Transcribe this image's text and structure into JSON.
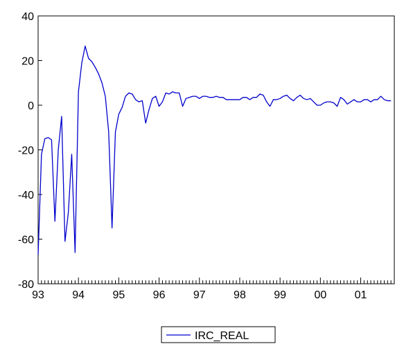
{
  "chart_data": {
    "type": "line",
    "title": "",
    "xlabel": "",
    "ylabel": "",
    "ylim": [
      -80,
      40
    ],
    "yticks": [
      40,
      20,
      0,
      -20,
      -40,
      -60,
      -80
    ],
    "xlim": [
      1993.0,
      2001.833
    ],
    "xticks": [
      {
        "value": 1993,
        "label": "93"
      },
      {
        "value": 1994,
        "label": "94"
      },
      {
        "value": 1995,
        "label": "95"
      },
      {
        "value": 1996,
        "label": "96"
      },
      {
        "value": 1997,
        "label": "97"
      },
      {
        "value": 1998,
        "label": "98"
      },
      {
        "value": 1999,
        "label": "99"
      },
      {
        "value": 2000,
        "label": "00"
      },
      {
        "value": 2001,
        "label": "01"
      }
    ],
    "frequency": "monthly",
    "start": "1993-01",
    "legend_position": "bottom-center",
    "grid": false,
    "series": [
      {
        "name": "IRC_REAL",
        "color": "#0000cc",
        "values": [
          -67,
          -22,
          -15,
          -14.5,
          -15.5,
          -52,
          -20,
          -5,
          -61,
          -48,
          -22,
          -66,
          6,
          19,
          26.5,
          21,
          19.5,
          17,
          14,
          10,
          4,
          -12,
          -55,
          -12,
          -4,
          -1,
          4,
          5.5,
          5,
          2.5,
          1.5,
          2,
          -8,
          -2,
          3,
          4,
          -0.5,
          1.5,
          5.5,
          5,
          6,
          5.5,
          5.5,
          -0.5,
          3,
          3.5,
          4,
          4,
          3,
          4,
          4,
          3.5,
          3.5,
          4,
          3.5,
          3.5,
          2.5,
          2.5,
          2.5,
          2.5,
          2.5,
          3.5,
          3.5,
          2.5,
          3.5,
          3.5,
          5,
          4.5,
          1.5,
          -0.5,
          2.5,
          2.5,
          3,
          4,
          4.5,
          3,
          2,
          3.5,
          4.5,
          3,
          2.5,
          3,
          1.5,
          0,
          0,
          1,
          1.5,
          1.5,
          1,
          -0.5,
          3.5,
          2.5,
          0.5,
          1.5,
          2.5,
          1.5,
          1.5,
          2.5,
          2.5,
          1.5,
          2.5,
          2.5,
          4,
          2.5,
          2,
          2
        ]
      }
    ]
  }
}
